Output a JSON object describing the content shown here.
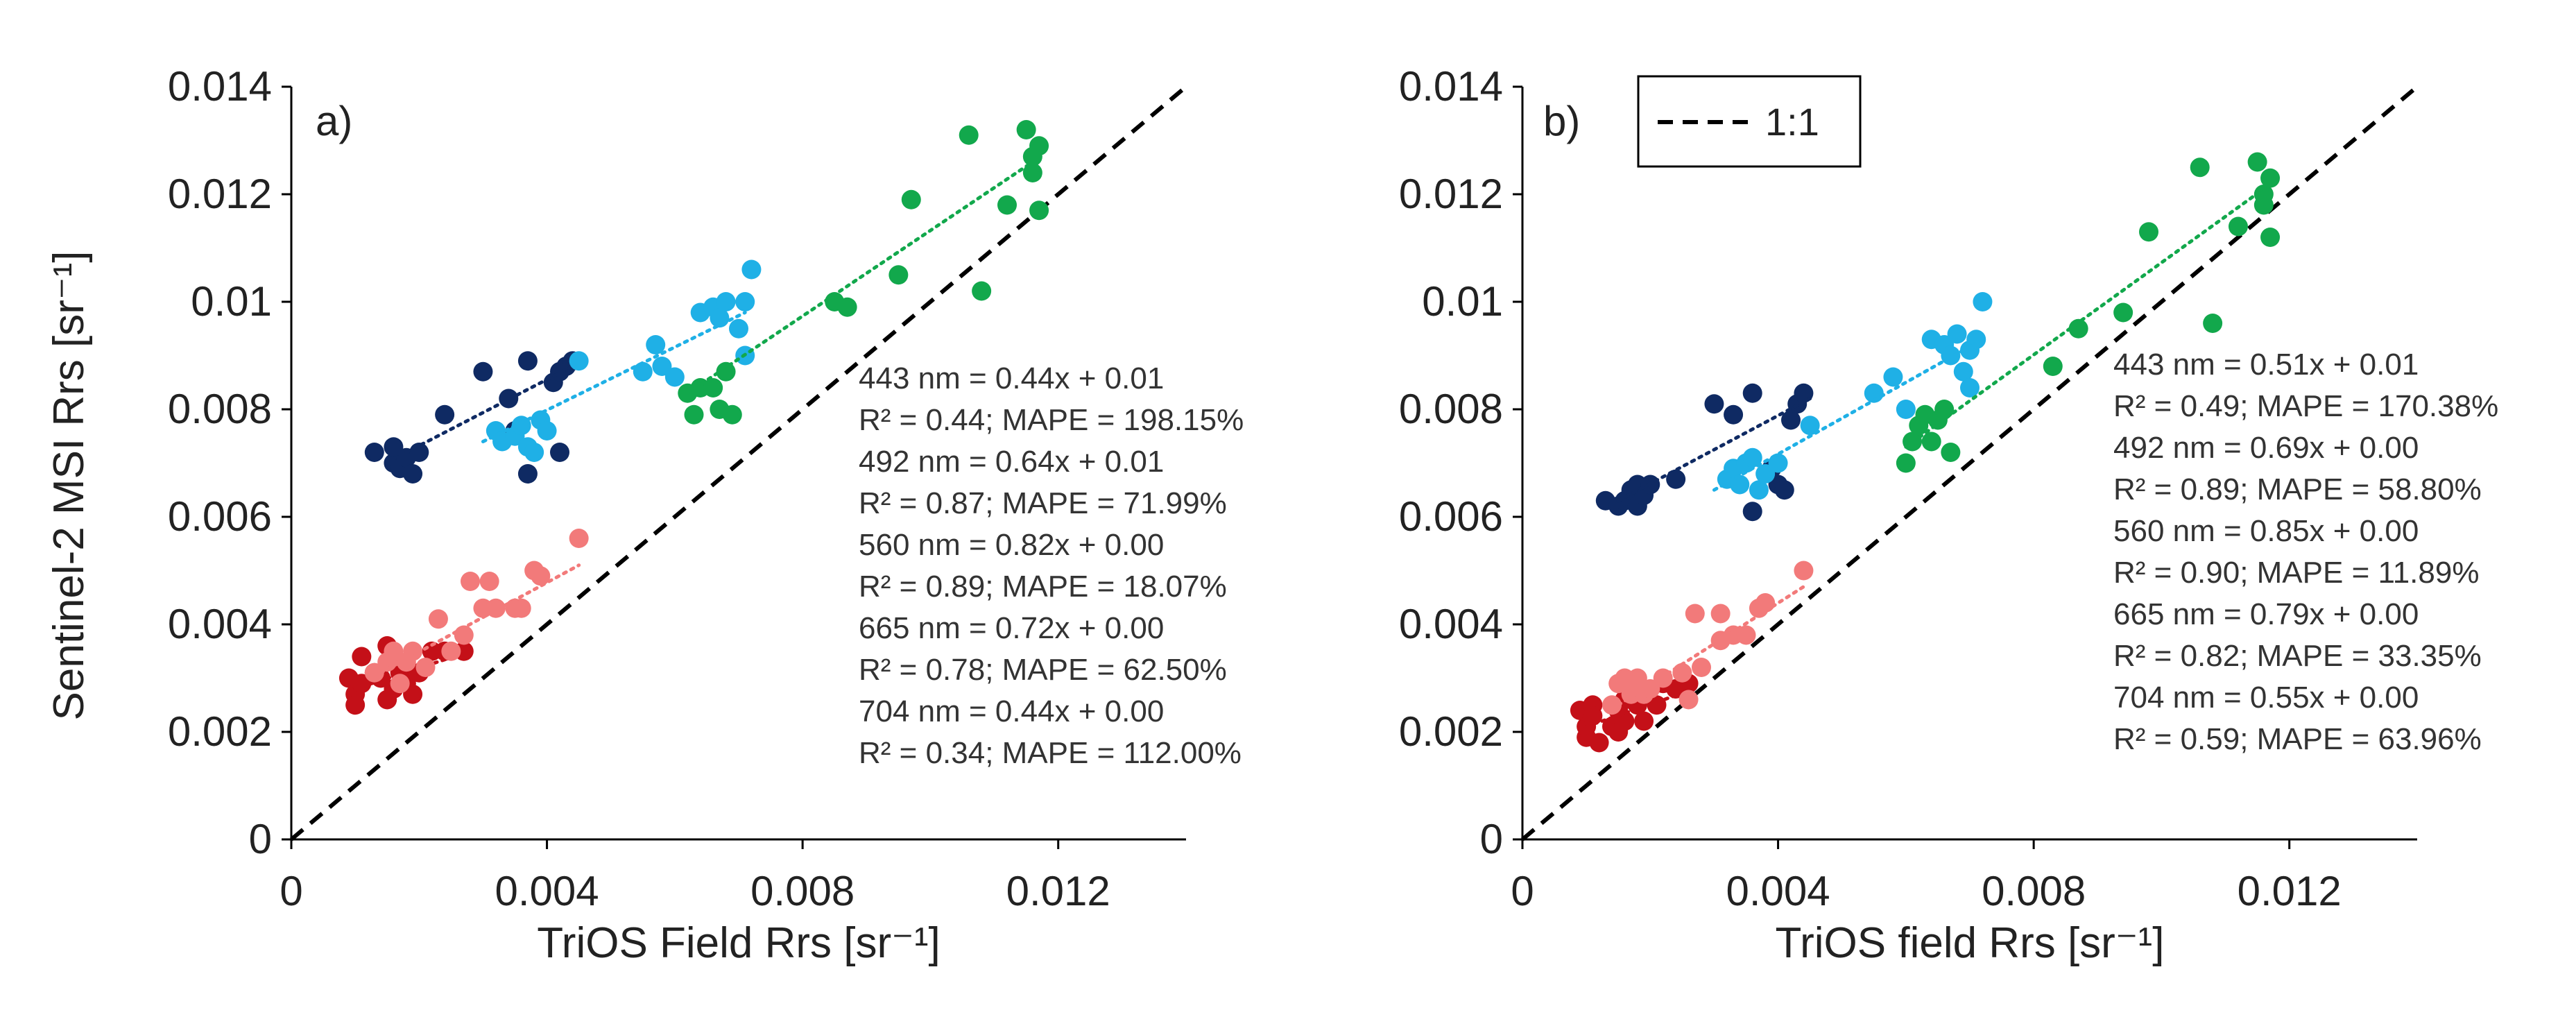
{
  "figure": {
    "ylabel": "Sentinel-2 MSI Rrs [sr⁻¹]",
    "colors": {
      "443": "#0f2a63",
      "492": "#1fb0e6",
      "560": "#12a84c",
      "665": "#c41018",
      "704": "#f27a7a",
      "one_to_one": "#000000"
    },
    "legend": {
      "label": "1:1"
    }
  },
  "chart_data": [
    {
      "type": "scatter",
      "panel_label": "a)",
      "xlabel": "TriOS Field Rrs [sr⁻¹]",
      "ylabel": "Sentinel-2 MSI Rrs [sr⁻¹]",
      "xlim": [
        0,
        0.014
      ],
      "ylim": [
        0,
        0.014
      ],
      "xticks": [
        "0",
        "0.004",
        "0.008",
        "0.012"
      ],
      "yticks": [
        "0",
        "0.002",
        "0.004",
        "0.006",
        "0.008",
        "0.01",
        "0.012",
        "0.014"
      ],
      "reference_line": "1:1",
      "equations": [
        "443 nm = 0.44x + 0.01",
        "R² = 0.44; MAPE = 198.15%",
        "492 nm = 0.64x + 0.01",
        "R² = 0.87; MAPE = 71.99%",
        "560 nm = 0.82x + 0.00",
        "R² = 0.89; MAPE = 18.07%",
        "665 nm = 0.72x + 0.00",
        "R² = 0.78; MAPE = 62.50%",
        "704 nm = 0.44x + 0.00",
        "R² = 0.34; MAPE = 112.00%"
      ],
      "series": [
        {
          "name": "443 nm",
          "color_key": "443",
          "trend": [
            [
              0.0018,
              0.0072
            ],
            [
              0.0044,
              0.0088
            ]
          ],
          "points": [
            [
              0.0013,
              0.0072
            ],
            [
              0.0016,
              0.007
            ],
            [
              0.0017,
              0.0069
            ],
            [
              0.0018,
              0.0071
            ],
            [
              0.0019,
              0.0068
            ],
            [
              0.002,
              0.0072
            ],
            [
              0.0016,
              0.0073
            ],
            [
              0.0024,
              0.0079
            ],
            [
              0.003,
              0.0087
            ],
            [
              0.0034,
              0.0082
            ],
            [
              0.0037,
              0.0089
            ],
            [
              0.0041,
              0.0085
            ],
            [
              0.0042,
              0.0087
            ],
            [
              0.0043,
              0.0088
            ],
            [
              0.0044,
              0.0089
            ],
            [
              0.0035,
              0.0076
            ],
            [
              0.0037,
              0.0068
            ],
            [
              0.0042,
              0.0072
            ]
          ]
        },
        {
          "name": "492 nm",
          "color_key": "492",
          "trend": [
            [
              0.003,
              0.0074
            ],
            [
              0.0071,
              0.0098
            ]
          ],
          "points": [
            [
              0.0032,
              0.0076
            ],
            [
              0.0033,
              0.0074
            ],
            [
              0.0035,
              0.0075
            ],
            [
              0.0036,
              0.0077
            ],
            [
              0.0037,
              0.0073
            ],
            [
              0.0038,
              0.0072
            ],
            [
              0.0039,
              0.0078
            ],
            [
              0.004,
              0.0076
            ],
            [
              0.0045,
              0.0089
            ],
            [
              0.0055,
              0.0087
            ],
            [
              0.0057,
              0.0092
            ],
            [
              0.0058,
              0.0088
            ],
            [
              0.006,
              0.0086
            ],
            [
              0.0064,
              0.0098
            ],
            [
              0.0066,
              0.0099
            ],
            [
              0.0067,
              0.0097
            ],
            [
              0.0068,
              0.01
            ],
            [
              0.007,
              0.0095
            ],
            [
              0.0071,
              0.01
            ],
            [
              0.0072,
              0.0106
            ],
            [
              0.0071,
              0.009
            ]
          ]
        },
        {
          "name": "560 nm",
          "color_key": "560",
          "trend": [
            [
              0.0062,
              0.0083
            ],
            [
              0.0116,
              0.0126
            ]
          ],
          "points": [
            [
              0.0062,
              0.0083
            ],
            [
              0.0063,
              0.0079
            ],
            [
              0.0064,
              0.0084
            ],
            [
              0.0066,
              0.0084
            ],
            [
              0.0067,
              0.008
            ],
            [
              0.0068,
              0.0087
            ],
            [
              0.0069,
              0.0079
            ],
            [
              0.0085,
              0.01
            ],
            [
              0.0087,
              0.0099
            ],
            [
              0.0095,
              0.0105
            ],
            [
              0.0097,
              0.0119
            ],
            [
              0.0106,
              0.0131
            ],
            [
              0.0108,
              0.0102
            ],
            [
              0.0112,
              0.0118
            ],
            [
              0.0115,
              0.0132
            ],
            [
              0.0116,
              0.0124
            ],
            [
              0.0116,
              0.0127
            ],
            [
              0.0117,
              0.0117
            ],
            [
              0.0117,
              0.0129
            ]
          ]
        },
        {
          "name": "665 nm",
          "color_key": "665",
          "trend": [
            [
              0.001,
              0.0028
            ],
            [
              0.0028,
              0.0035
            ]
          ],
          "points": [
            [
              0.0009,
              0.003
            ],
            [
              0.001,
              0.0027
            ],
            [
              0.001,
              0.0025
            ],
            [
              0.0011,
              0.0029
            ],
            [
              0.0011,
              0.0034
            ],
            [
              0.0013,
              0.0031
            ],
            [
              0.0014,
              0.003
            ],
            [
              0.0015,
              0.0036
            ],
            [
              0.0015,
              0.0026
            ],
            [
              0.0016,
              0.0033
            ],
            [
              0.0016,
              0.0028
            ],
            [
              0.0017,
              0.0031
            ],
            [
              0.0018,
              0.0029
            ],
            [
              0.0019,
              0.0027
            ],
            [
              0.002,
              0.0031
            ],
            [
              0.0022,
              0.0035
            ],
            [
              0.0024,
              0.0035
            ],
            [
              0.0027,
              0.0035
            ]
          ]
        },
        {
          "name": "704 nm",
          "color_key": "704",
          "trend": [
            [
              0.0014,
              0.0031
            ],
            [
              0.0045,
              0.0051
            ]
          ],
          "points": [
            [
              0.0013,
              0.0031
            ],
            [
              0.0015,
              0.0033
            ],
            [
              0.0016,
              0.0035
            ],
            [
              0.0017,
              0.0029
            ],
            [
              0.0018,
              0.0033
            ],
            [
              0.0019,
              0.0035
            ],
            [
              0.0021,
              0.0032
            ],
            [
              0.0023,
              0.0041
            ],
            [
              0.0025,
              0.0035
            ],
            [
              0.0027,
              0.0038
            ],
            [
              0.0028,
              0.0048
            ],
            [
              0.003,
              0.0043
            ],
            [
              0.0031,
              0.0048
            ],
            [
              0.0032,
              0.0043
            ],
            [
              0.0035,
              0.0043
            ],
            [
              0.0036,
              0.0043
            ],
            [
              0.0038,
              0.005
            ],
            [
              0.0039,
              0.0049
            ],
            [
              0.0045,
              0.0056
            ]
          ]
        }
      ]
    },
    {
      "type": "scatter",
      "panel_label": "b)",
      "xlabel": "TriOS field Rrs [sr⁻¹]",
      "ylabel": "",
      "xlim": [
        0,
        0.014
      ],
      "ylim": [
        0,
        0.014
      ],
      "xticks": [
        "0",
        "0.004",
        "0.008",
        "0.012"
      ],
      "yticks": [
        "0",
        "0.002",
        "0.004",
        "0.006",
        "0.008",
        "0.01",
        "0.012",
        "0.014"
      ],
      "reference_line": "1:1",
      "equations": [
        "443 nm = 0.51x + 0.01",
        "R² = 0.49; MAPE = 170.38%",
        "492 nm = 0.69x + 0.00",
        "R² = 0.89; MAPE = 58.80%",
        "560 nm = 0.85x + 0.00",
        "R² = 0.90; MAPE = 11.89%",
        "665 nm = 0.79x + 0.00",
        "R² = 0.82; MAPE = 33.35%",
        "704 nm = 0.55x + 0.00",
        "R² = 0.59; MAPE = 63.96%"
      ],
      "series": [
        {
          "name": "443 nm",
          "color_key": "443",
          "trend": [
            [
              0.0015,
              0.0063
            ],
            [
              0.0045,
              0.0082
            ]
          ],
          "points": [
            [
              0.0013,
              0.0063
            ],
            [
              0.0015,
              0.0062
            ],
            [
              0.0016,
              0.0063
            ],
            [
              0.0017,
              0.0065
            ],
            [
              0.0018,
              0.0062
            ],
            [
              0.0018,
              0.0066
            ],
            [
              0.0019,
              0.0064
            ],
            [
              0.002,
              0.0066
            ],
            [
              0.0024,
              0.0067
            ],
            [
              0.003,
              0.0081
            ],
            [
              0.0033,
              0.0079
            ],
            [
              0.0036,
              0.0083
            ],
            [
              0.004,
              0.0066
            ],
            [
              0.0041,
              0.0065
            ],
            [
              0.0042,
              0.0078
            ],
            [
              0.0043,
              0.0081
            ],
            [
              0.0044,
              0.0083
            ],
            [
              0.0036,
              0.0061
            ],
            [
              0.0039,
              0.0069
            ]
          ]
        },
        {
          "name": "492 nm",
          "color_key": "492",
          "trend": [
            [
              0.003,
              0.0065
            ],
            [
              0.0072,
              0.0093
            ]
          ],
          "points": [
            [
              0.0032,
              0.0067
            ],
            [
              0.0033,
              0.0069
            ],
            [
              0.0034,
              0.0066
            ],
            [
              0.0035,
              0.007
            ],
            [
              0.0036,
              0.0071
            ],
            [
              0.0037,
              0.0065
            ],
            [
              0.0038,
              0.0068
            ],
            [
              0.004,
              0.007
            ],
            [
              0.0045,
              0.0077
            ],
            [
              0.0055,
              0.0083
            ],
            [
              0.0058,
              0.0086
            ],
            [
              0.006,
              0.008
            ],
            [
              0.0064,
              0.0093
            ],
            [
              0.0066,
              0.0092
            ],
            [
              0.0067,
              0.009
            ],
            [
              0.0068,
              0.0094
            ],
            [
              0.0069,
              0.0087
            ],
            [
              0.007,
              0.0091
            ],
            [
              0.0071,
              0.0093
            ],
            [
              0.0072,
              0.01
            ],
            [
              0.007,
              0.0084
            ]
          ]
        },
        {
          "name": "560 nm",
          "color_key": "560",
          "trend": [
            [
              0.006,
              0.0073
            ],
            [
              0.0116,
              0.0121
            ]
          ],
          "points": [
            [
              0.006,
              0.007
            ],
            [
              0.0061,
              0.0074
            ],
            [
              0.0062,
              0.0077
            ],
            [
              0.0063,
              0.0079
            ],
            [
              0.0064,
              0.0074
            ],
            [
              0.0065,
              0.0078
            ],
            [
              0.0066,
              0.008
            ],
            [
              0.0067,
              0.0072
            ],
            [
              0.0083,
              0.0088
            ],
            [
              0.0087,
              0.0095
            ],
            [
              0.0094,
              0.0098
            ],
            [
              0.0098,
              0.0113
            ],
            [
              0.0106,
              0.0125
            ],
            [
              0.0108,
              0.0096
            ],
            [
              0.0112,
              0.0114
            ],
            [
              0.0115,
              0.0126
            ],
            [
              0.0116,
              0.0118
            ],
            [
              0.0116,
              0.012
            ],
            [
              0.0117,
              0.0112
            ],
            [
              0.0117,
              0.0123
            ]
          ]
        },
        {
          "name": "665 nm",
          "color_key": "665",
          "trend": [
            [
              0.001,
              0.0021
            ],
            [
              0.0027,
              0.0028
            ]
          ],
          "points": [
            [
              0.0009,
              0.0024
            ],
            [
              0.001,
              0.0019
            ],
            [
              0.001,
              0.0021
            ],
            [
              0.0011,
              0.0025
            ],
            [
              0.0011,
              0.0023
            ],
            [
              0.0012,
              0.0018
            ],
            [
              0.0014,
              0.0021
            ],
            [
              0.0015,
              0.0024
            ],
            [
              0.0015,
              0.002
            ],
            [
              0.0016,
              0.0026
            ],
            [
              0.0016,
              0.0022
            ],
            [
              0.0017,
              0.0028
            ],
            [
              0.0018,
              0.0025
            ],
            [
              0.0019,
              0.0022
            ],
            [
              0.0021,
              0.0025
            ],
            [
              0.0022,
              0.0029
            ],
            [
              0.0024,
              0.0028
            ],
            [
              0.0026,
              0.0029
            ]
          ]
        },
        {
          "name": "704 nm",
          "color_key": "704",
          "trend": [
            [
              0.0015,
              0.0025
            ],
            [
              0.0044,
              0.0047
            ]
          ],
          "points": [
            [
              0.0014,
              0.0025
            ],
            [
              0.0015,
              0.0029
            ],
            [
              0.0016,
              0.003
            ],
            [
              0.0017,
              0.0027
            ],
            [
              0.0018,
              0.003
            ],
            [
              0.0019,
              0.0027
            ],
            [
              0.002,
              0.0028
            ],
            [
              0.0022,
              0.003
            ],
            [
              0.0025,
              0.0031
            ],
            [
              0.0026,
              0.0026
            ],
            [
              0.0027,
              0.0042
            ],
            [
              0.0028,
              0.0032
            ],
            [
              0.0031,
              0.0042
            ],
            [
              0.0031,
              0.0037
            ],
            [
              0.0033,
              0.0038
            ],
            [
              0.0035,
              0.0038
            ],
            [
              0.0037,
              0.0043
            ],
            [
              0.0038,
              0.0044
            ],
            [
              0.0044,
              0.005
            ]
          ]
        }
      ]
    }
  ]
}
